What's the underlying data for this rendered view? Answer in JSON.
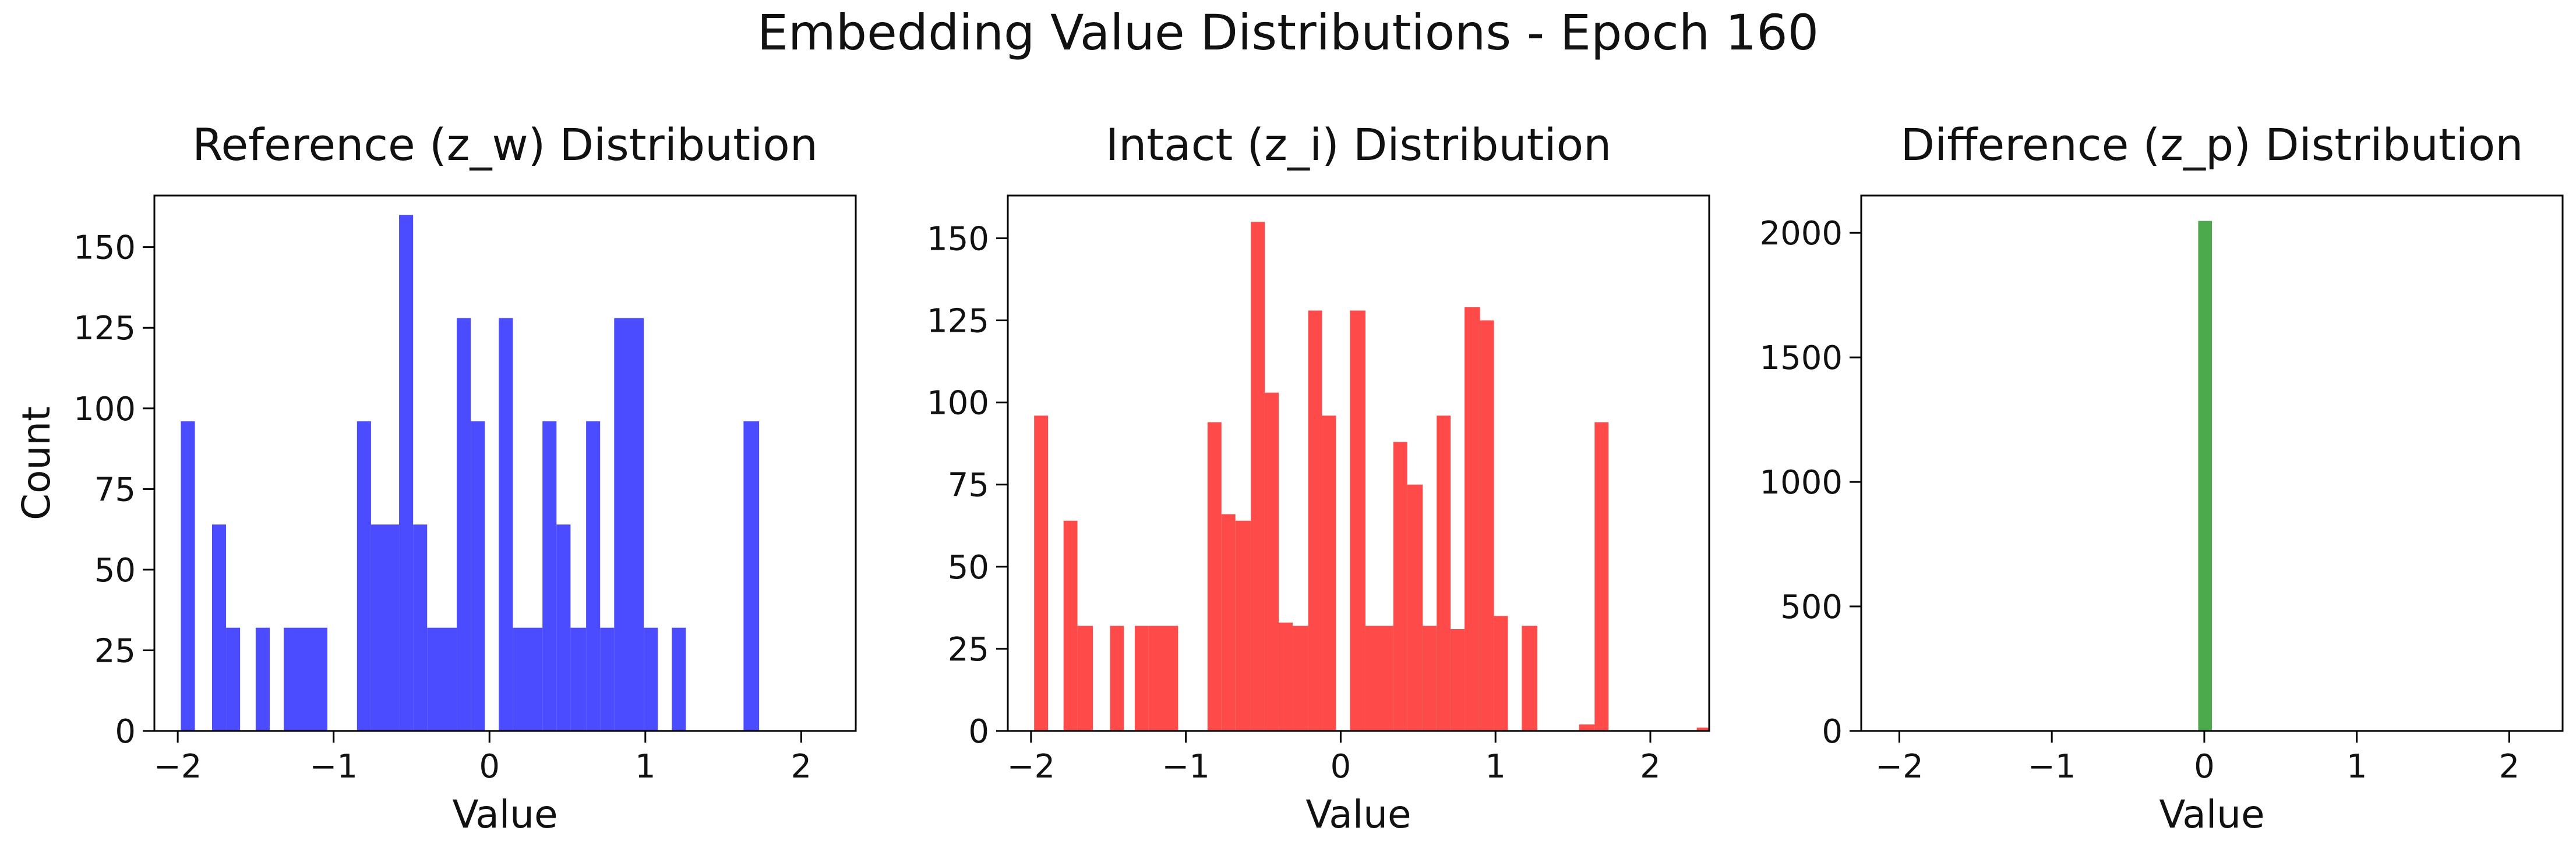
{
  "figure": {
    "title": "Embedding Value Distributions - Epoch 160"
  },
  "chart_data": [
    {
      "type": "bar",
      "title": "Reference (z_w) Distribution",
      "xlabel": "Value",
      "ylabel": "Count",
      "xlim": [
        -2.15,
        2.35
      ],
      "ylim": [
        0,
        166
      ],
      "xticks": [
        -2,
        -1,
        0,
        1,
        2
      ],
      "yticks": [
        0,
        25,
        50,
        75,
        100,
        125,
        150
      ],
      "grid": false,
      "color": "#4b4bff",
      "bars": [
        {
          "x0": -1.98,
          "x1": -1.89,
          "value": 96
        },
        {
          "x0": -1.78,
          "x1": -1.69,
          "value": 64
        },
        {
          "x0": -1.69,
          "x1": -1.6,
          "value": 32
        },
        {
          "x0": -1.5,
          "x1": -1.41,
          "value": 32
        },
        {
          "x0": -1.32,
          "x1": -1.04,
          "value": 32
        },
        {
          "x0": -0.85,
          "x1": -0.76,
          "value": 96
        },
        {
          "x0": -0.76,
          "x1": -0.58,
          "value": 64
        },
        {
          "x0": -0.58,
          "x1": -0.49,
          "value": 160
        },
        {
          "x0": -0.49,
          "x1": -0.4,
          "value": 64
        },
        {
          "x0": -0.4,
          "x1": -0.21,
          "value": 32
        },
        {
          "x0": -0.21,
          "x1": -0.12,
          "value": 128
        },
        {
          "x0": -0.12,
          "x1": -0.03,
          "value": 96
        },
        {
          "x0": 0.06,
          "x1": 0.15,
          "value": 128
        },
        {
          "x0": 0.15,
          "x1": 0.34,
          "value": 32
        },
        {
          "x0": 0.34,
          "x1": 0.43,
          "value": 96
        },
        {
          "x0": 0.43,
          "x1": 0.52,
          "value": 64
        },
        {
          "x0": 0.52,
          "x1": 0.62,
          "value": 32
        },
        {
          "x0": 0.62,
          "x1": 0.71,
          "value": 96
        },
        {
          "x0": 0.71,
          "x1": 0.8,
          "value": 32
        },
        {
          "x0": 0.8,
          "x1": 0.99,
          "value": 128
        },
        {
          "x0": 0.99,
          "x1": 1.08,
          "value": 32
        },
        {
          "x0": 1.17,
          "x1": 1.26,
          "value": 32
        },
        {
          "x0": 1.63,
          "x1": 1.73,
          "value": 96
        }
      ]
    },
    {
      "type": "bar",
      "title": "Intact (z_i) Distribution",
      "xlabel": "Value",
      "ylabel": "",
      "xlim": [
        -2.15,
        2.38
      ],
      "ylim": [
        0,
        163
      ],
      "xticks": [
        -2,
        -1,
        0,
        1,
        2
      ],
      "yticks": [
        0,
        25,
        50,
        75,
        100,
        125,
        150
      ],
      "grid": false,
      "color": "#ff4a4a",
      "bars": [
        {
          "x0": -1.98,
          "x1": -1.89,
          "value": 96
        },
        {
          "x0": -1.79,
          "x1": -1.7,
          "value": 64
        },
        {
          "x0": -1.7,
          "x1": -1.6,
          "value": 32
        },
        {
          "x0": -1.49,
          "x1": -1.4,
          "value": 32
        },
        {
          "x0": -1.33,
          "x1": -1.24,
          "value": 32
        },
        {
          "x0": -1.24,
          "x1": -1.05,
          "value": 32
        },
        {
          "x0": -0.86,
          "x1": -0.77,
          "value": 94
        },
        {
          "x0": -0.77,
          "x1": -0.68,
          "value": 66
        },
        {
          "x0": -0.68,
          "x1": -0.58,
          "value": 64
        },
        {
          "x0": -0.58,
          "x1": -0.49,
          "value": 155
        },
        {
          "x0": -0.49,
          "x1": -0.4,
          "value": 103
        },
        {
          "x0": -0.4,
          "x1": -0.31,
          "value": 33
        },
        {
          "x0": -0.31,
          "x1": -0.21,
          "value": 32
        },
        {
          "x0": -0.21,
          "x1": -0.12,
          "value": 128
        },
        {
          "x0": -0.12,
          "x1": -0.03,
          "value": 96
        },
        {
          "x0": 0.06,
          "x1": 0.16,
          "value": 128
        },
        {
          "x0": 0.16,
          "x1": 0.34,
          "value": 32
        },
        {
          "x0": 0.34,
          "x1": 0.43,
          "value": 88
        },
        {
          "x0": 0.43,
          "x1": 0.53,
          "value": 75
        },
        {
          "x0": 0.53,
          "x1": 0.62,
          "value": 32
        },
        {
          "x0": 0.62,
          "x1": 0.71,
          "value": 96
        },
        {
          "x0": 0.71,
          "x1": 0.8,
          "value": 31
        },
        {
          "x0": 0.8,
          "x1": 0.9,
          "value": 129
        },
        {
          "x0": 0.9,
          "x1": 0.99,
          "value": 125
        },
        {
          "x0": 0.99,
          "x1": 1.08,
          "value": 35
        },
        {
          "x0": 1.17,
          "x1": 1.27,
          "value": 32
        },
        {
          "x0": 1.54,
          "x1": 1.64,
          "value": 2
        },
        {
          "x0": 1.64,
          "x1": 1.73,
          "value": 94
        },
        {
          "x0": 2.3,
          "x1": 2.38,
          "value": 1
        }
      ]
    },
    {
      "type": "bar",
      "title": "Difference (z_p) Distribution",
      "xlabel": "Value",
      "ylabel": "",
      "xlim": [
        -2.25,
        2.35
      ],
      "ylim": [
        0,
        2150
      ],
      "xticks": [
        -2,
        -1,
        0,
        1,
        2
      ],
      "yticks": [
        0,
        500,
        1000,
        1500,
        2000
      ],
      "grid": false,
      "color": "#4caa4c",
      "bars": [
        {
          "x0": -0.04,
          "x1": 0.05,
          "value": 2048
        }
      ]
    }
  ]
}
